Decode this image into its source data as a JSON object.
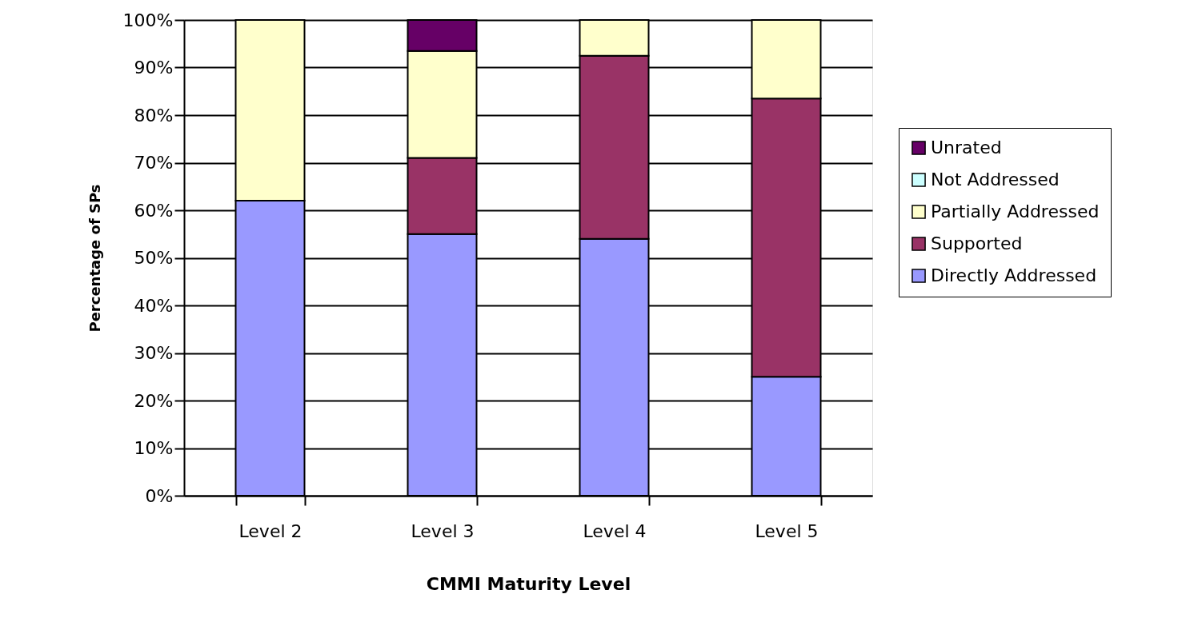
{
  "chart_data": {
    "type": "bar",
    "stacked": true,
    "xlabel": "CMMI Maturity Level",
    "ylabel": "Percentage of SPs",
    "categories": [
      "Level 2",
      "Level 3",
      "Level 4",
      "Level 5"
    ],
    "series": [
      {
        "name": "Directly Addressed",
        "color": "#9999ff",
        "values": [
          62,
          55,
          54,
          25
        ]
      },
      {
        "name": "Supported",
        "color": "#993366",
        "values": [
          0,
          16,
          38.5,
          58.5
        ]
      },
      {
        "name": "Partially Addressed",
        "color": "#ffffcc",
        "values": [
          38,
          22.5,
          7.5,
          16.5
        ]
      },
      {
        "name": "Not Addressed",
        "color": "#ccffff",
        "values": [
          0,
          0,
          0,
          0
        ]
      },
      {
        "name": "Unrated",
        "color": "#660066",
        "values": [
          0,
          6.5,
          0,
          0
        ]
      }
    ],
    "ylim": [
      0,
      100
    ],
    "yticks": [
      {
        "value": 0,
        "label": "0%"
      },
      {
        "value": 10,
        "label": "10%"
      },
      {
        "value": 20,
        "label": "20%"
      },
      {
        "value": 30,
        "label": "30%"
      },
      {
        "value": 40,
        "label": "40%"
      },
      {
        "value": 50,
        "label": "50%"
      },
      {
        "value": 60,
        "label": "60%"
      },
      {
        "value": 70,
        "label": "70%"
      },
      {
        "value": 80,
        "label": "80%"
      },
      {
        "value": 90,
        "label": "90%"
      },
      {
        "value": 100,
        "label": "100%"
      }
    ],
    "grid": "y",
    "legend": "right"
  }
}
